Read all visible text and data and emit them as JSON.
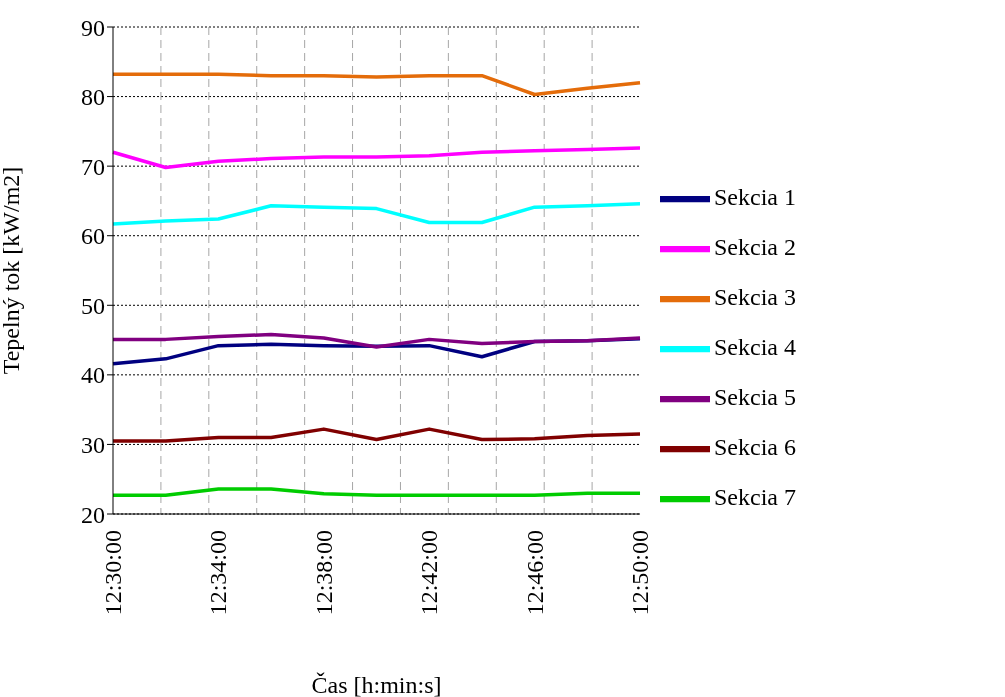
{
  "chart_data": {
    "type": "line",
    "xlabel": "Čas [h:min:s]",
    "ylabel": "Tepelný tok [kW/m2]",
    "categories": [
      "12:30:00",
      null,
      "12:34:00",
      null,
      "12:38:00",
      null,
      "12:42:00",
      null,
      "12:46:00",
      null,
      "12:50:00"
    ],
    "ylim": [
      20,
      90
    ],
    "yticks": [
      20,
      30,
      40,
      50,
      60,
      70,
      80,
      90
    ],
    "grid": true,
    "legend": "right",
    "marker": "none",
    "line_style": "solid",
    "series": [
      {
        "name": "Sekcia 1",
        "color": "#000080",
        "values": [
          41.6,
          42.3,
          44.2,
          44.4,
          44.2,
          44.1,
          44.2,
          42.6,
          44.8,
          44.9,
          45.2
        ]
      },
      {
        "name": "Sekcia 2",
        "color": "#ff00ff",
        "values": [
          72.0,
          69.8,
          70.7,
          71.1,
          71.3,
          71.3,
          71.5,
          72.0,
          72.2,
          72.4,
          72.6
        ]
      },
      {
        "name": "Sekcia 3",
        "color": "#e46c0a",
        "values": [
          83.2,
          83.2,
          83.2,
          83.0,
          83.0,
          82.8,
          83.0,
          83.0,
          80.3,
          81.2,
          82.0
        ]
      },
      {
        "name": "Sekcia 4",
        "color": "#00ffff",
        "values": [
          61.7,
          62.1,
          62.4,
          64.3,
          64.1,
          63.9,
          61.9,
          61.9,
          64.1,
          64.3,
          64.6
        ]
      },
      {
        "name": "Sekcia 5",
        "color": "#800080",
        "values": [
          45.1,
          45.1,
          45.5,
          45.8,
          45.3,
          44.0,
          45.1,
          44.5,
          44.8,
          44.9,
          45.3
        ]
      },
      {
        "name": "Sekcia 6",
        "color": "#800000",
        "values": [
          30.5,
          30.5,
          31.0,
          31.0,
          32.2,
          30.7,
          32.2,
          30.7,
          30.8,
          31.3,
          31.5
        ]
      },
      {
        "name": "Sekcia 7",
        "color": "#00cc00",
        "values": [
          22.7,
          22.7,
          23.6,
          23.6,
          22.9,
          22.7,
          22.7,
          22.7,
          22.7,
          23.0,
          23.0
        ]
      }
    ]
  }
}
